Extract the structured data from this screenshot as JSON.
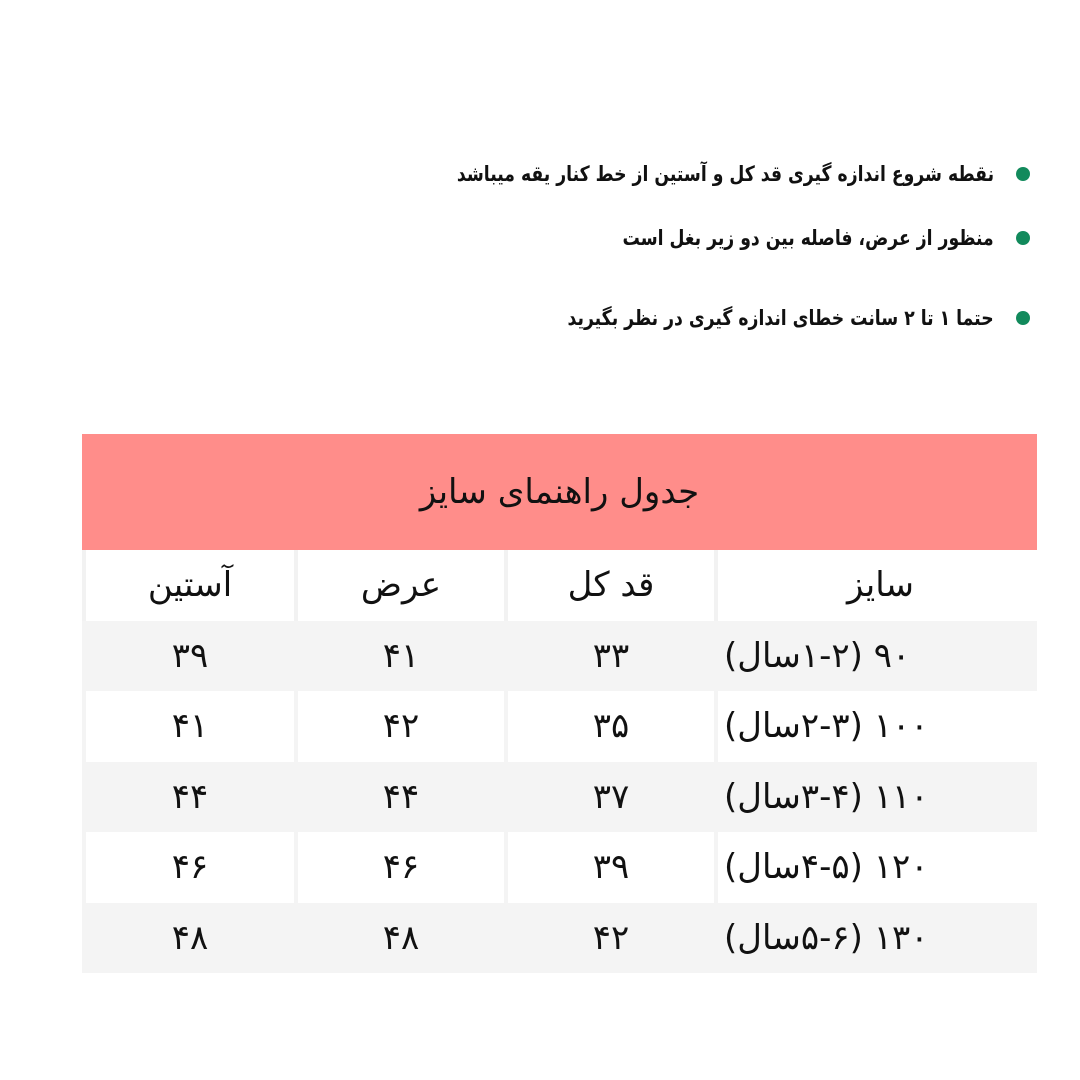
{
  "notes": [
    "نقطه شروع اندازه گیری قد کل و آستین از خط کنار یقه میباشد",
    "منظور از عرض، فاصله بین دو زیر بغل است",
    "حتما ۱ تا ۲ سانت خطای اندازه گیری در نظر بگیرید"
  ],
  "colors": {
    "bullet": "#128a5c",
    "title_band": "#ff8d8a",
    "alt_row": "#f4f4f4"
  },
  "table": {
    "title": "جدول راهنمای سایز",
    "headers": [
      "سایز",
      "قد کل",
      "عرض",
      "آستین"
    ],
    "rows": [
      [
        "۹۰ (۱-۲سال)",
        "۳۳",
        "۴۱",
        "۳۹"
      ],
      [
        "۱۰۰ (۲-۳سال)",
        "۳۵",
        "۴۲",
        "۴۱"
      ],
      [
        "۱۱۰ (۳-۴سال)",
        "۳۷",
        "۴۴",
        "۴۴"
      ],
      [
        "۱۲۰ (۴-۵سال)",
        "۳۹",
        "۴۶",
        "۴۶"
      ],
      [
        "۱۳۰ (۵-۶سال)",
        "۴۲",
        "۴۸",
        "۴۸"
      ]
    ]
  }
}
